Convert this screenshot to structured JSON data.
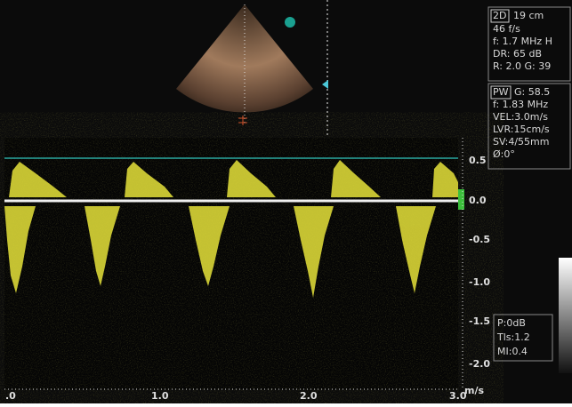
{
  "info_panel": {
    "mode": "2D",
    "depth": "19 cm",
    "lines": [
      "46 f/s",
      "f: 1.7 MHz H",
      "DR: 65 dB",
      "R: 2.0  G: 39"
    ]
  },
  "doppler_panel": {
    "mode": "PW",
    "gain": "G: 58.5",
    "lines": [
      "f: 1.83 MHz",
      "VEL:3.0m/s",
      "LVR:15cm/s",
      "SV:4/55mm",
      "Ø:0°"
    ]
  },
  "output_panel": {
    "lines": [
      "P:0dB",
      "Tls:1.2",
      "MI:0.4"
    ]
  },
  "velocity_axis": {
    "labels": [
      "0.5",
      "0.0",
      "-0.5",
      "-1.0",
      "-1.5",
      "-2.0"
    ],
    "unit": "m/s"
  },
  "time_axis": {
    "labels": [
      ".0",
      "1.0",
      "2.0",
      "3.0"
    ]
  }
}
